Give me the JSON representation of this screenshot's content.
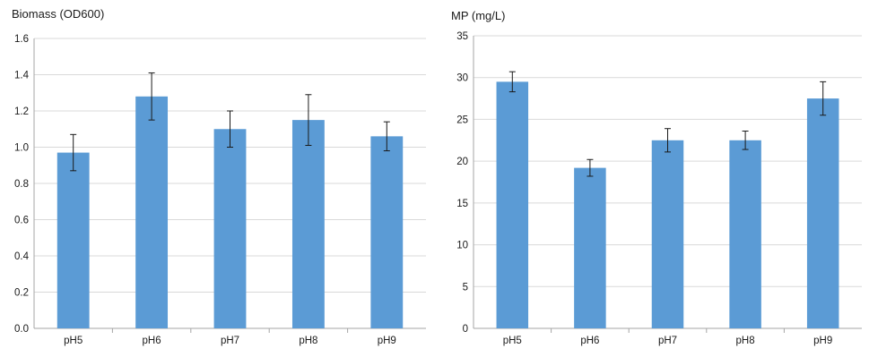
{
  "chart_data": [
    {
      "type": "bar",
      "title": "",
      "ylabel": "Biomass (OD600)",
      "xlabel": "",
      "categories": [
        "pH5",
        "pH6",
        "pH7",
        "pH8",
        "pH9"
      ],
      "values": [
        0.97,
        1.28,
        1.1,
        1.15,
        1.06
      ],
      "error_low": [
        0.87,
        1.15,
        1.0,
        1.01,
        0.98
      ],
      "error_high": [
        1.07,
        1.41,
        1.2,
        1.29,
        1.14
      ],
      "ylim": [
        0,
        1.6
      ],
      "ytick_step": 0.2,
      "ytick_decimals": 1,
      "bar_color": "#5b9bd5",
      "grid": true
    },
    {
      "type": "bar",
      "title": "",
      "ylabel": "MP (mg/L)",
      "xlabel": "",
      "categories": [
        "pH5",
        "pH6",
        "pH7",
        "pH8",
        "pH9"
      ],
      "values": [
        29.5,
        19.2,
        22.5,
        22.5,
        27.5
      ],
      "error_low": [
        28.3,
        18.2,
        21.1,
        21.4,
        25.5
      ],
      "error_high": [
        30.7,
        20.2,
        23.9,
        23.6,
        29.5
      ],
      "ylim": [
        0,
        35
      ],
      "ytick_step": 5,
      "ytick_decimals": 0,
      "bar_color": "#5b9bd5",
      "grid": true
    }
  ]
}
